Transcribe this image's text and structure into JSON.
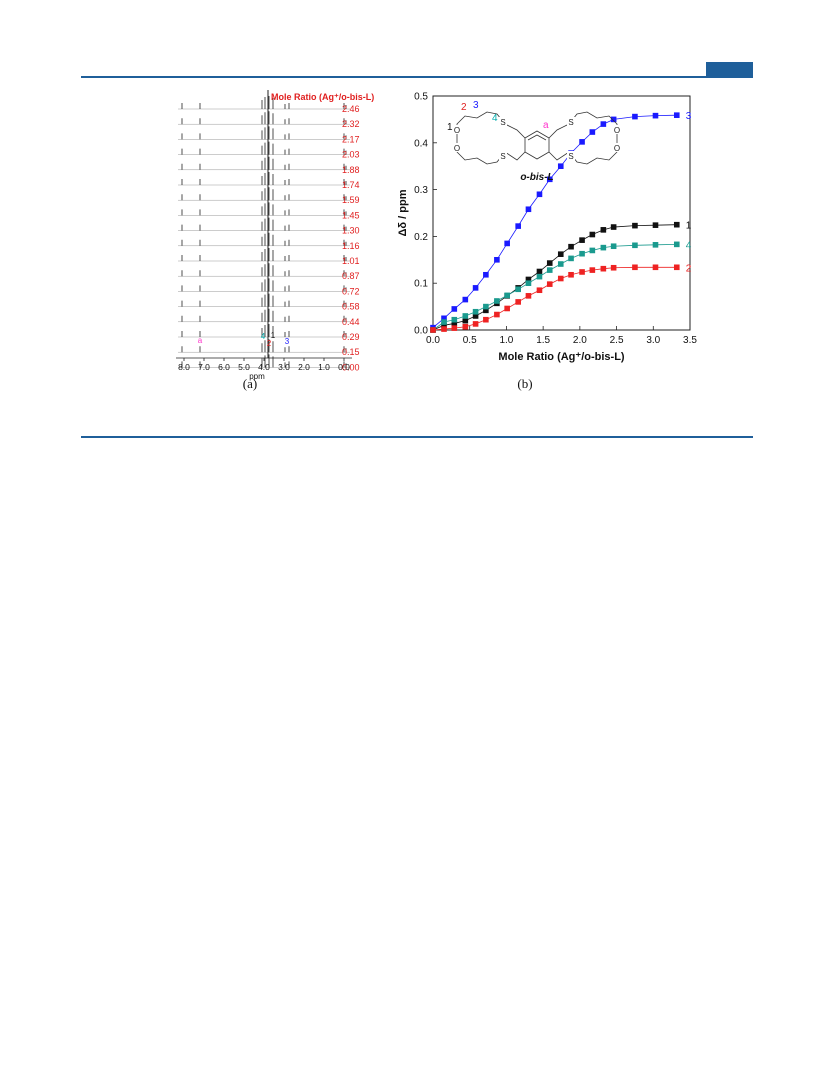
{
  "header": {
    "accent": "#1f5f9a"
  },
  "panel_a": {
    "caption": "(a)",
    "legend_title": "Mole Ratio (Ag⁺/o-bis-L)",
    "ratios": [
      "2.46",
      "2.32",
      "2.17",
      "2.03",
      "1.88",
      "1.74",
      "1.59",
      "1.45",
      "1.30",
      "1.16",
      "1.01",
      "0.87",
      "0.72",
      "0.58",
      "0.44",
      "0.29",
      "0.15",
      "0.00"
    ],
    "axis_ticks": [
      "8.0",
      "7.0",
      "6.0",
      "5.0",
      "4.0",
      "3.0",
      "2.0",
      "1.0",
      "0.0"
    ],
    "axis_label": "ppm",
    "peak_labels": [
      {
        "text": "a",
        "color": "#ff33cc"
      },
      {
        "text": "4",
        "color": "#00aaaa"
      },
      {
        "text": "2",
        "color": "#e02020"
      },
      {
        "text": "1",
        "color": "#111111"
      },
      {
        "text": "3",
        "color": "#1a1aff"
      }
    ],
    "ratio_color": "#e02020"
  },
  "chart_data": {
    "type": "scatter",
    "caption": "(b)",
    "xlabel": "Mole Ratio (Ag⁺/o-bis-L)",
    "ylabel": "Δδ / ppm",
    "xlim": [
      0.0,
      3.5
    ],
    "ylim": [
      0.0,
      0.5
    ],
    "xticks": [
      "0.0",
      "0.5",
      "1.0",
      "1.5",
      "2.0",
      "2.5",
      "3.0",
      "3.5"
    ],
    "yticks": [
      "0.0",
      "0.1",
      "0.2",
      "0.3",
      "0.4",
      "0.5"
    ],
    "x": [
      0.0,
      0.15,
      0.29,
      0.44,
      0.58,
      0.72,
      0.87,
      1.01,
      1.16,
      1.3,
      1.45,
      1.59,
      1.74,
      1.88,
      2.03,
      2.17,
      2.32,
      2.46,
      2.75,
      3.03,
      3.32
    ],
    "series": [
      {
        "name": "3",
        "color": "#1a1aff",
        "values": [
          0.005,
          0.025,
          0.045,
          0.065,
          0.09,
          0.118,
          0.15,
          0.185,
          0.222,
          0.258,
          0.29,
          0.322,
          0.35,
          0.378,
          0.402,
          0.423,
          0.44,
          0.45,
          0.456,
          0.458,
          0.459
        ]
      },
      {
        "name": "1",
        "color": "#111111",
        "values": [
          0.0,
          0.01,
          0.014,
          0.02,
          0.03,
          0.042,
          0.057,
          0.073,
          0.09,
          0.108,
          0.125,
          0.143,
          0.162,
          0.178,
          0.192,
          0.204,
          0.214,
          0.22,
          0.223,
          0.224,
          0.225
        ]
      },
      {
        "name": "4",
        "color": "#1a9a8e",
        "values": [
          0.0,
          0.017,
          0.022,
          0.03,
          0.039,
          0.05,
          0.062,
          0.074,
          0.087,
          0.1,
          0.114,
          0.128,
          0.141,
          0.153,
          0.163,
          0.17,
          0.176,
          0.179,
          0.181,
          0.182,
          0.183
        ]
      },
      {
        "name": "2",
        "color": "#ee2222",
        "values": [
          0.0,
          0.002,
          0.004,
          0.007,
          0.013,
          0.022,
          0.033,
          0.046,
          0.06,
          0.073,
          0.085,
          0.098,
          0.11,
          0.118,
          0.124,
          0.128,
          0.131,
          0.133,
          0.134,
          0.134,
          0.134
        ]
      }
    ],
    "molecule": {
      "name": "o-bis-L",
      "labels": [
        {
          "text": "1",
          "color": "#111111"
        },
        {
          "text": "2",
          "color": "#e02020"
        },
        {
          "text": "3",
          "color": "#1a1aff"
        },
        {
          "text": "4",
          "color": "#00aaaa"
        },
        {
          "text": "a",
          "color": "#ff33cc"
        }
      ],
      "atoms": [
        "O",
        "O",
        "S",
        "S",
        "S",
        "S",
        "O",
        "O"
      ]
    }
  }
}
